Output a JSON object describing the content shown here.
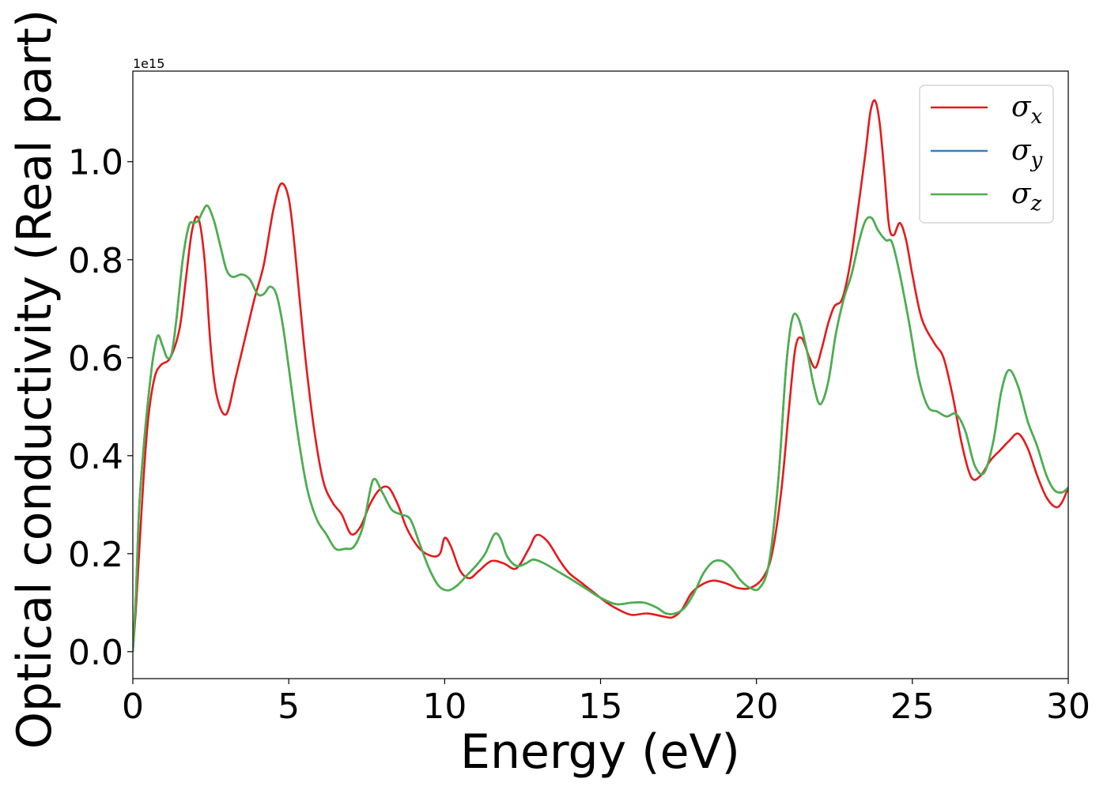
{
  "chart_data": {
    "type": "line",
    "xlabel": "Energy (eV)",
    "ylabel": "Optical conductivity (Real part)",
    "y_offset_text": "1e15",
    "y_scale_factor": 1000000000000000.0,
    "xlim": [
      0,
      30
    ],
    "ylim": [
      -0.055,
      1.185
    ],
    "x_ticks": [
      0,
      5,
      10,
      15,
      20,
      25,
      30
    ],
    "x_tick_labels": [
      "0",
      "5",
      "10",
      "15",
      "20",
      "25",
      "30"
    ],
    "y_ticks": [
      0.0,
      0.2,
      0.4,
      0.6,
      0.8,
      1.0
    ],
    "y_tick_labels": [
      "0.0",
      "0.2",
      "0.4",
      "0.6",
      "0.8",
      "1.0"
    ],
    "grid": false,
    "legend_position": "top-right",
    "series": [
      {
        "name": "σx",
        "symbol": "σ",
        "subscript": "x",
        "color": "#e41a1c",
        "x": [
          0,
          0.1,
          0.2,
          0.35,
          0.5,
          0.7,
          0.9,
          1.2,
          1.5,
          1.7,
          1.9,
          2.1,
          2.3,
          2.5,
          2.7,
          3.0,
          3.3,
          3.6,
          3.9,
          4.2,
          4.5,
          4.75,
          5.0,
          5.2,
          5.5,
          5.8,
          6.1,
          6.4,
          6.7,
          7.0,
          7.3,
          7.6,
          7.9,
          8.2,
          8.5,
          8.8,
          9.2,
          9.6,
          9.85,
          10.0,
          10.2,
          10.5,
          10.8,
          11.1,
          11.5,
          11.9,
          12.3,
          12.7,
          12.95,
          13.3,
          13.7,
          14.0,
          14.4,
          14.8,
          15.2,
          15.6,
          16.0,
          16.5,
          17.0,
          17.3,
          17.6,
          17.9,
          18.2,
          18.6,
          19.0,
          19.4,
          19.8,
          20.2,
          20.5,
          20.8,
          21.05,
          21.25,
          21.45,
          21.7,
          21.9,
          22.1,
          22.3,
          22.5,
          22.75,
          23.0,
          23.25,
          23.5,
          23.65,
          23.8,
          23.95,
          24.1,
          24.25,
          24.4,
          24.6,
          24.8,
          25.0,
          25.3,
          25.7,
          26.0,
          26.3,
          26.6,
          26.9,
          27.2,
          27.5,
          27.8,
          28.1,
          28.4,
          28.7,
          29.0,
          29.3,
          29.6,
          29.8,
          30.0
        ],
        "y": [
          0.0,
          0.09,
          0.2,
          0.36,
          0.48,
          0.56,
          0.585,
          0.6,
          0.66,
          0.76,
          0.86,
          0.885,
          0.8,
          0.62,
          0.52,
          0.485,
          0.56,
          0.64,
          0.72,
          0.79,
          0.9,
          0.955,
          0.925,
          0.82,
          0.62,
          0.46,
          0.35,
          0.305,
          0.28,
          0.24,
          0.255,
          0.3,
          0.33,
          0.335,
          0.3,
          0.25,
          0.21,
          0.195,
          0.2,
          0.232,
          0.215,
          0.165,
          0.15,
          0.165,
          0.185,
          0.18,
          0.17,
          0.21,
          0.238,
          0.225,
          0.185,
          0.16,
          0.14,
          0.12,
          0.1,
          0.085,
          0.075,
          0.078,
          0.072,
          0.07,
          0.085,
          0.118,
          0.135,
          0.145,
          0.14,
          0.13,
          0.13,
          0.15,
          0.2,
          0.33,
          0.5,
          0.62,
          0.64,
          0.6,
          0.58,
          0.62,
          0.67,
          0.705,
          0.72,
          0.79,
          0.9,
          1.02,
          1.1,
          1.125,
          1.08,
          0.98,
          0.87,
          0.85,
          0.875,
          0.84,
          0.77,
          0.68,
          0.63,
          0.6,
          0.52,
          0.42,
          0.355,
          0.36,
          0.39,
          0.41,
          0.43,
          0.445,
          0.415,
          0.36,
          0.315,
          0.295,
          0.305,
          0.335
        ]
      },
      {
        "name": "σy",
        "symbol": "σ",
        "subscript": "y",
        "color": "#377eb8",
        "x": [
          0,
          0.1,
          0.2,
          0.35,
          0.5,
          0.65,
          0.8,
          0.95,
          1.1,
          1.25,
          1.4,
          1.6,
          1.8,
          1.95,
          2.1,
          2.25,
          2.4,
          2.6,
          2.8,
          3.0,
          3.2,
          3.5,
          3.75,
          4.0,
          4.2,
          4.4,
          4.6,
          4.8,
          5.0,
          5.3,
          5.6,
          5.9,
          6.2,
          6.5,
          6.8,
          7.1,
          7.4,
          7.7,
          8.0,
          8.3,
          8.6,
          8.9,
          9.2,
          9.5,
          9.8,
          10.1,
          10.4,
          10.7,
          11.0,
          11.3,
          11.6,
          11.8,
          12.0,
          12.3,
          12.6,
          12.85,
          13.2,
          13.6,
          14.0,
          14.5,
          15.0,
          15.5,
          16.0,
          16.4,
          16.8,
          17.1,
          17.4,
          17.7,
          18.0,
          18.3,
          18.6,
          18.9,
          19.2,
          19.5,
          19.8,
          20.1,
          20.4,
          20.7,
          20.95,
          21.15,
          21.35,
          21.6,
          21.85,
          22.05,
          22.3,
          22.55,
          22.8,
          23.05,
          23.3,
          23.5,
          23.7,
          23.9,
          24.15,
          24.35,
          24.6,
          24.9,
          25.2,
          25.5,
          25.8,
          26.1,
          26.4,
          26.7,
          27.0,
          27.3,
          27.6,
          27.85,
          28.1,
          28.4,
          28.7,
          29.0,
          29.3,
          29.55,
          29.8,
          30.0
        ],
        "y": [
          0.0,
          0.12,
          0.29,
          0.42,
          0.52,
          0.6,
          0.645,
          0.625,
          0.6,
          0.61,
          0.68,
          0.8,
          0.87,
          0.875,
          0.88,
          0.9,
          0.91,
          0.88,
          0.83,
          0.78,
          0.765,
          0.77,
          0.76,
          0.73,
          0.73,
          0.745,
          0.73,
          0.67,
          0.58,
          0.44,
          0.33,
          0.27,
          0.24,
          0.21,
          0.21,
          0.215,
          0.26,
          0.35,
          0.325,
          0.29,
          0.28,
          0.27,
          0.22,
          0.17,
          0.135,
          0.125,
          0.135,
          0.155,
          0.175,
          0.2,
          0.24,
          0.23,
          0.195,
          0.175,
          0.18,
          0.188,
          0.18,
          0.165,
          0.15,
          0.13,
          0.11,
          0.097,
          0.1,
          0.1,
          0.09,
          0.078,
          0.078,
          0.09,
          0.12,
          0.16,
          0.183,
          0.185,
          0.17,
          0.145,
          0.13,
          0.13,
          0.18,
          0.35,
          0.58,
          0.68,
          0.68,
          0.62,
          0.54,
          0.505,
          0.55,
          0.65,
          0.72,
          0.77,
          0.84,
          0.88,
          0.885,
          0.86,
          0.84,
          0.835,
          0.77,
          0.67,
          0.56,
          0.5,
          0.49,
          0.48,
          0.485,
          0.45,
          0.38,
          0.365,
          0.43,
          0.53,
          0.575,
          0.54,
          0.47,
          0.42,
          0.36,
          0.33,
          0.325,
          0.335
        ]
      },
      {
        "name": "σz",
        "symbol": "σ",
        "subscript": "z",
        "color": "#4daf4a",
        "x": [
          0,
          0.1,
          0.2,
          0.35,
          0.5,
          0.65,
          0.8,
          0.95,
          1.1,
          1.25,
          1.4,
          1.6,
          1.8,
          1.95,
          2.1,
          2.25,
          2.4,
          2.6,
          2.8,
          3.0,
          3.2,
          3.5,
          3.75,
          4.0,
          4.2,
          4.4,
          4.6,
          4.8,
          5.0,
          5.3,
          5.6,
          5.9,
          6.2,
          6.5,
          6.8,
          7.1,
          7.4,
          7.7,
          8.0,
          8.3,
          8.6,
          8.9,
          9.2,
          9.5,
          9.8,
          10.1,
          10.4,
          10.7,
          11.0,
          11.3,
          11.6,
          11.8,
          12.0,
          12.3,
          12.6,
          12.85,
          13.2,
          13.6,
          14.0,
          14.5,
          15.0,
          15.5,
          16.0,
          16.4,
          16.8,
          17.1,
          17.4,
          17.7,
          18.0,
          18.3,
          18.6,
          18.9,
          19.2,
          19.5,
          19.8,
          20.1,
          20.4,
          20.7,
          20.95,
          21.15,
          21.35,
          21.6,
          21.85,
          22.05,
          22.3,
          22.55,
          22.8,
          23.05,
          23.3,
          23.5,
          23.7,
          23.9,
          24.15,
          24.35,
          24.6,
          24.9,
          25.2,
          25.5,
          25.8,
          26.1,
          26.4,
          26.7,
          27.0,
          27.3,
          27.6,
          27.85,
          28.1,
          28.4,
          28.7,
          29.0,
          29.3,
          29.55,
          29.8,
          30.0
        ],
        "y": [
          0.0,
          0.12,
          0.29,
          0.42,
          0.52,
          0.6,
          0.645,
          0.625,
          0.6,
          0.61,
          0.68,
          0.8,
          0.87,
          0.875,
          0.88,
          0.9,
          0.91,
          0.88,
          0.83,
          0.78,
          0.765,
          0.77,
          0.76,
          0.73,
          0.73,
          0.745,
          0.73,
          0.67,
          0.58,
          0.44,
          0.33,
          0.27,
          0.24,
          0.21,
          0.21,
          0.215,
          0.26,
          0.35,
          0.325,
          0.29,
          0.28,
          0.27,
          0.22,
          0.17,
          0.135,
          0.125,
          0.135,
          0.155,
          0.175,
          0.2,
          0.24,
          0.23,
          0.195,
          0.175,
          0.18,
          0.188,
          0.18,
          0.165,
          0.15,
          0.13,
          0.11,
          0.097,
          0.1,
          0.1,
          0.09,
          0.078,
          0.078,
          0.09,
          0.12,
          0.16,
          0.183,
          0.185,
          0.17,
          0.145,
          0.13,
          0.13,
          0.18,
          0.35,
          0.58,
          0.68,
          0.68,
          0.62,
          0.54,
          0.505,
          0.55,
          0.65,
          0.72,
          0.77,
          0.84,
          0.88,
          0.885,
          0.86,
          0.84,
          0.835,
          0.77,
          0.67,
          0.56,
          0.5,
          0.49,
          0.48,
          0.485,
          0.45,
          0.38,
          0.365,
          0.43,
          0.53,
          0.575,
          0.54,
          0.47,
          0.42,
          0.36,
          0.33,
          0.325,
          0.335
        ]
      }
    ]
  }
}
